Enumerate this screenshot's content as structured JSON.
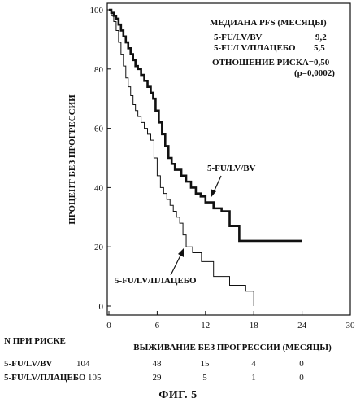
{
  "chart_data": {
    "type": "line",
    "step": true,
    "title": "",
    "xlabel": "ВЫЖИВАНИЕ БЕЗ ПРОГРЕССИИ (МЕСЯЦЫ)",
    "ylabel": "ПРОЦЕНТ БЕЗ ПРОГРЕССИИ",
    "xlim": [
      0,
      30
    ],
    "ylim": [
      0,
      100
    ],
    "xticks": [
      0,
      6,
      12,
      18,
      24,
      30
    ],
    "yticks": [
      0,
      20,
      40,
      60,
      80,
      100
    ],
    "grid": false,
    "series": [
      {
        "name": "5-FU/LV/BV",
        "style": "bold",
        "x": [
          0,
          0.3,
          0.6,
          0.9,
          1.2,
          1.5,
          1.8,
          2.1,
          2.4,
          2.7,
          3.0,
          3.3,
          3.6,
          4.0,
          4.4,
          4.8,
          5.2,
          5.5,
          5.8,
          6.2,
          6.6,
          7.0,
          7.4,
          7.8,
          8.2,
          8.6,
          9.0,
          9.6,
          10.2,
          10.8,
          11.4,
          12.0,
          13.0,
          14.0,
          15.0,
          16.2,
          24.0
        ],
        "y": [
          100,
          99,
          98,
          97,
          95,
          93,
          91,
          89,
          87,
          85,
          83,
          81,
          80,
          78,
          76,
          74,
          72,
          70,
          66,
          62,
          58,
          54,
          50,
          48,
          46,
          46,
          44,
          42,
          40,
          38,
          37,
          35,
          33,
          32,
          27,
          22,
          22
        ]
      },
      {
        "name": "5-FU/LV/ПЛАЦЕБО",
        "style": "thin",
        "x": [
          0,
          0.3,
          0.6,
          0.9,
          1.2,
          1.5,
          1.8,
          2.1,
          2.4,
          2.7,
          3.0,
          3.3,
          3.6,
          4.0,
          4.4,
          4.8,
          5.2,
          5.6,
          6.0,
          6.4,
          6.8,
          7.2,
          7.6,
          8.0,
          8.4,
          8.8,
          9.2,
          9.6,
          10.4,
          11.5,
          13.0,
          15.0,
          17.0,
          18.0
        ],
        "y": [
          100,
          98,
          96,
          93,
          89,
          85,
          81,
          77,
          74,
          71,
          68,
          66,
          64,
          62,
          60,
          58,
          56,
          50,
          44,
          40,
          38,
          36,
          34,
          32,
          30,
          28,
          24,
          20,
          18,
          15,
          10,
          7,
          5,
          0
        ]
      }
    ],
    "legend_box": {
      "header": "МЕДИАНА PFS (МЕСЯЦЫ)",
      "rows": [
        {
          "label": "5-FU/LV/BV",
          "value": "9,2"
        },
        {
          "label": "5-FU/LV/ПЛАЦЕБО",
          "value": "5,5"
        }
      ],
      "ratio": "ОТНОШЕНИЕ РИСКА=0,50",
      "pvalue": "(p=0,0002)"
    },
    "annotations": [
      {
        "text": "5-FU/LV/BV",
        "target_series": "5-FU/LV/BV"
      },
      {
        "text": "5-FU/LV/ПЛАЦЕБО",
        "target_series": "5-FU/LV/ПЛАЦЕБО"
      }
    ],
    "risk_table": {
      "header": "N ПРИ РИСКЕ",
      "rows": [
        {
          "label": "5-FU/LV/BV",
          "n0": "104",
          "values": [
            "48",
            "15",
            "4",
            "0"
          ]
        },
        {
          "label": "5-FU/LV/ПЛАЦЕБО",
          "n0": "105",
          "values": [
            "29",
            "5",
            "1",
            "0"
          ]
        }
      ]
    }
  },
  "caption": "ФИГ. 5"
}
